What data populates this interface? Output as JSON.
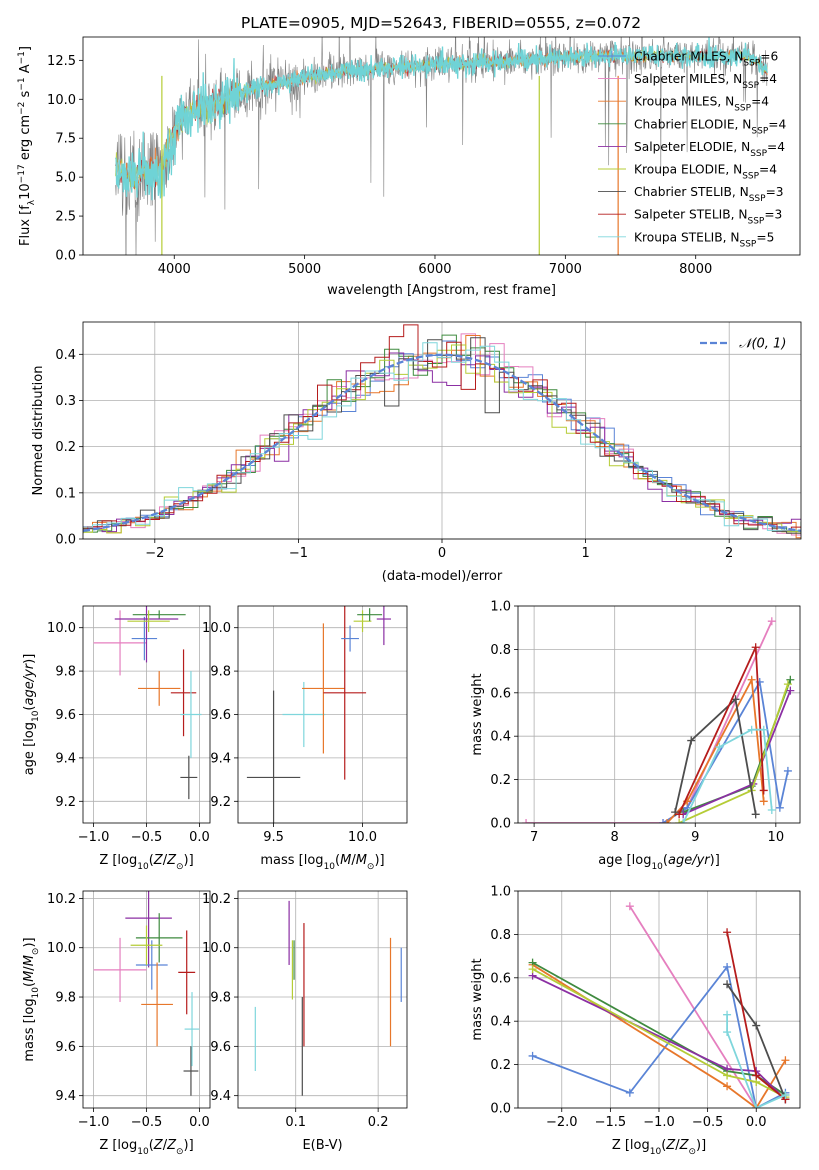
{
  "title": "PLATE=0905, MJD=52643, FIBERID=0555, z=0.072",
  "colors": {
    "c1": "#5a84d6",
    "c2": "#e7772b",
    "c3": "#3f8a3f",
    "c4": "#8b2fa3",
    "c5": "#b5cc36",
    "c6": "#4d4d4d",
    "c7": "#b51c1c",
    "c8": "#7fd6dc",
    "c9": "#e57fbf",
    "gray": "#808080",
    "cyan": "#6fd3d6"
  },
  "legend_models": [
    {
      "name": "Chabrier MILES",
      "nssp": "6",
      "color": "c1"
    },
    {
      "name": "Salpeter MILES",
      "nssp": "4",
      "color": "c9"
    },
    {
      "name": "Kroupa MILES",
      "nssp": "4",
      "color": "c2"
    },
    {
      "name": "Chabrier ELODIE",
      "nssp": "4",
      "color": "c3"
    },
    {
      "name": "Salpeter ELODIE",
      "nssp": "4",
      "color": "c4"
    },
    {
      "name": "Kroupa ELODIE",
      "nssp": "4",
      "color": "c5"
    },
    {
      "name": "Chabrier STELIB",
      "nssp": "3",
      "color": "c6"
    },
    {
      "name": "Salpeter STELIB",
      "nssp": "3",
      "color": "c7"
    },
    {
      "name": "Kroupa STELIB",
      "nssp": "5",
      "color": "c8"
    }
  ],
  "chart_data": [
    {
      "id": "spectrum",
      "type": "line",
      "xlabel": "wavelength [Angstrom, rest frame]",
      "ylabel": "Flux [f_λ 10^-17 erg cm^-2 s^-1 A^-1]",
      "xlim": [
        3300,
        8800
      ],
      "ylim": [
        0,
        14
      ],
      "xticks": [
        4000,
        5000,
        6000,
        7000,
        8000
      ],
      "yticks": [
        0.0,
        2.5,
        5.0,
        7.5,
        10.0,
        12.5
      ],
      "legend_position": "right",
      "continuum": [
        [
          3550,
          5.5
        ],
        [
          3700,
          5.0
        ],
        [
          3800,
          5.6
        ],
        [
          3900,
          5.3
        ],
        [
          3950,
          7.0
        ],
        [
          4050,
          8.6
        ],
        [
          4150,
          9.2
        ],
        [
          4300,
          9.6
        ],
        [
          4500,
          10.4
        ],
        [
          4700,
          10.9
        ],
        [
          5000,
          11.4
        ],
        [
          5300,
          11.8
        ],
        [
          5600,
          12.0
        ],
        [
          6000,
          12.2
        ],
        [
          6500,
          12.4
        ],
        [
          7000,
          12.7
        ],
        [
          7500,
          12.8
        ],
        [
          8000,
          12.8
        ],
        [
          8400,
          12.8
        ],
        [
          8550,
          11.8
        ]
      ]
    },
    {
      "id": "residuals",
      "type": "histogram",
      "xlabel": "(data-model)/error",
      "ylabel": "Normed distribution",
      "xlim": [
        -2.5,
        2.5
      ],
      "ylim": [
        0,
        0.47
      ],
      "xticks": [
        -2,
        -1,
        0,
        1,
        2
      ],
      "yticks": [
        0.0,
        0.1,
        0.2,
        0.3,
        0.4
      ],
      "legend": "N(0,1)",
      "legend_label": "𝒩(0, 1)",
      "legend_position": "top-right",
      "bin_width": 0.1
    },
    {
      "id": "age_vs_Z",
      "type": "scatter",
      "xlabel": "Z [log10(Z/Z_sun)]",
      "ylabel": "age [log10(age/yr)]",
      "xlim": [
        -1.1,
        0.1
      ],
      "ylim": [
        9.1,
        10.1
      ],
      "xticks": [
        -1.0,
        -0.5,
        0.0
      ],
      "yticks": [
        9.2,
        9.4,
        9.6,
        9.8,
        10.0
      ],
      "points": [
        {
          "color": "c9",
          "x": -0.75,
          "xerr": 0.25,
          "y": 9.93,
          "yerr": 0.15
        },
        {
          "color": "c1",
          "x": -0.52,
          "xerr": 0.12,
          "y": 9.95,
          "yerr": 0.1
        },
        {
          "color": "c2",
          "x": -0.38,
          "xerr": 0.2,
          "y": 9.72,
          "yerr": 0.08
        },
        {
          "color": "c3",
          "x": -0.38,
          "xerr": 0.25,
          "y": 10.06,
          "yerr": 0.02
        },
        {
          "color": "c4",
          "x": -0.5,
          "xerr": 0.3,
          "y": 10.04,
          "yerr": 0.2
        },
        {
          "color": "c5",
          "x": -0.48,
          "xerr": 0.2,
          "y": 10.03,
          "yerr": 0.05
        },
        {
          "color": "c7",
          "x": -0.15,
          "xerr": 0.12,
          "y": 9.7,
          "yerr": 0.2
        },
        {
          "color": "c6",
          "x": -0.1,
          "xerr": 0.08,
          "y": 9.31,
          "yerr": 0.1
        },
        {
          "color": "c8",
          "x": -0.08,
          "xerr": 0.1,
          "y": 9.6,
          "yerr": 0.2
        }
      ]
    },
    {
      "id": "age_vs_mass",
      "type": "scatter",
      "xlabel": "mass [log10(M/M_sun)]",
      "ylabel": "",
      "xlim": [
        9.3,
        10.25
      ],
      "ylim": [
        9.1,
        10.1
      ],
      "xticks": [
        9.5,
        10.0
      ],
      "yticks": [
        9.2,
        9.4,
        9.6,
        9.8,
        10.0
      ],
      "points": [
        {
          "color": "c6",
          "x": 9.5,
          "xerr": 0.15,
          "y": 9.31,
          "yerr": 0.4
        },
        {
          "color": "c8",
          "x": 9.67,
          "xerr": 0.12,
          "y": 9.6,
          "yerr": 0.15
        },
        {
          "color": "c2",
          "x": 9.78,
          "xerr": 0.12,
          "y": 9.72,
          "yerr": 0.3
        },
        {
          "color": "c7",
          "x": 9.9,
          "xerr": 0.12,
          "y": 9.7,
          "yerr": 0.4
        },
        {
          "color": "c1",
          "x": 9.93,
          "xerr": 0.05,
          "y": 9.95,
          "yerr": 0.06
        },
        {
          "color": "c5",
          "x": 10.0,
          "xerr": 0.05,
          "y": 10.03,
          "yerr": 0.05
        },
        {
          "color": "c3",
          "x": 10.04,
          "xerr": 0.07,
          "y": 10.06,
          "yerr": 0.03
        },
        {
          "color": "c4",
          "x": 10.12,
          "xerr": 0.04,
          "y": 10.04,
          "yerr": 0.12
        }
      ]
    },
    {
      "id": "weight_vs_age",
      "type": "line",
      "xlabel": "age [log10(age/yr)]",
      "ylabel": "mass weight",
      "xlim": [
        6.8,
        10.3
      ],
      "ylim": [
        0,
        1.0
      ],
      "xticks": [
        7,
        8,
        9,
        10
      ],
      "yticks": [
        0.0,
        0.2,
        0.4,
        0.6,
        0.8,
        1.0
      ],
      "series": [
        {
          "color": "c9",
          "points": [
            [
              6.9,
              0.0
            ],
            [
              8.6,
              0.0
            ],
            [
              8.9,
              0.07
            ],
            [
              9.95,
              0.93
            ]
          ]
        },
        {
          "color": "c1",
          "points": [
            [
              8.6,
              0.0
            ],
            [
              8.9,
              0.07
            ],
            [
              9.8,
              0.65
            ],
            [
              10.05,
              0.07
            ],
            [
              10.15,
              0.24
            ]
          ]
        },
        {
          "color": "c2",
          "points": [
            [
              8.65,
              0.0
            ],
            [
              8.9,
              0.1
            ],
            [
              9.7,
              0.66
            ],
            [
              9.85,
              0.1
            ]
          ]
        },
        {
          "color": "c3",
          "points": [
            [
              8.85,
              0.05
            ],
            [
              9.7,
              0.17
            ],
            [
              10.18,
              0.66
            ]
          ]
        },
        {
          "color": "c4",
          "points": [
            [
              8.85,
              0.04
            ],
            [
              9.72,
              0.18
            ],
            [
              10.18,
              0.61
            ]
          ]
        },
        {
          "color": "c5",
          "points": [
            [
              8.8,
              0.0
            ],
            [
              9.7,
              0.15
            ],
            [
              10.15,
              0.64
            ]
          ]
        },
        {
          "color": "c6",
          "points": [
            [
              8.75,
              0.05
            ],
            [
              8.95,
              0.38
            ],
            [
              9.5,
              0.57
            ],
            [
              9.75,
              0.04
            ]
          ]
        },
        {
          "color": "c7",
          "points": [
            [
              8.8,
              0.04
            ],
            [
              9.75,
              0.81
            ],
            [
              9.85,
              0.15
            ]
          ]
        },
        {
          "color": "c8",
          "points": [
            [
              8.85,
              0.0
            ],
            [
              9.3,
              0.35
            ],
            [
              9.7,
              0.43
            ],
            [
              9.85,
              0.43
            ],
            [
              9.95,
              0.06
            ]
          ]
        }
      ]
    },
    {
      "id": "mass_vs_Z",
      "type": "scatter",
      "xlabel": "Z [log10(Z/Z_sun)]",
      "ylabel": "mass [log10(M/M_sun)]",
      "xlim": [
        -1.1,
        0.1
      ],
      "ylim": [
        9.35,
        10.23
      ],
      "xticks": [
        -1.0,
        -0.5,
        0.0
      ],
      "yticks": [
        9.4,
        9.6,
        9.8,
        10.0,
        10.2
      ],
      "points": [
        {
          "color": "c9",
          "x": -0.75,
          "xerr": 0.25,
          "y": 9.91,
          "yerr": 0.13
        },
        {
          "color": "c4",
          "x": -0.48,
          "xerr": 0.22,
          "y": 10.12,
          "yerr": 0.2
        },
        {
          "color": "c3",
          "x": -0.38,
          "xerr": 0.22,
          "y": 10.04,
          "yerr": 0.1
        },
        {
          "color": "c1",
          "x": -0.45,
          "xerr": 0.15,
          "y": 9.93,
          "yerr": 0.1
        },
        {
          "color": "c5",
          "x": -0.5,
          "xerr": 0.15,
          "y": 10.01,
          "yerr": 0.08
        },
        {
          "color": "c2",
          "x": -0.4,
          "xerr": 0.15,
          "y": 9.77,
          "yerr": 0.17
        },
        {
          "color": "c7",
          "x": -0.12,
          "xerr": 0.08,
          "y": 9.9,
          "yerr": 0.17
        },
        {
          "color": "c6",
          "x": -0.08,
          "xerr": 0.07,
          "y": 9.5,
          "yerr": 0.1
        },
        {
          "color": "c8",
          "x": -0.07,
          "xerr": 0.07,
          "y": 9.67,
          "yerr": 0.15
        }
      ]
    },
    {
      "id": "mass_vs_EBV",
      "type": "scatter",
      "xlabel": "E(B-V)",
      "ylabel": "",
      "xlim": [
        0.03,
        0.235
      ],
      "ylim": [
        9.35,
        10.23
      ],
      "xticks": [
        0.1,
        0.2
      ],
      "yticks": [
        9.4,
        9.6,
        9.8,
        10.0,
        10.2
      ],
      "points": [
        {
          "color": "c8",
          "x": 0.051,
          "y": 9.63,
          "yerr": 0.13
        },
        {
          "color": "c4",
          "x": 0.092,
          "y": 10.06,
          "yerr": 0.13
        },
        {
          "color": "c5",
          "x": 0.096,
          "y": 9.91,
          "yerr": 0.12
        },
        {
          "color": "c3",
          "x": 0.098,
          "y": 9.95,
          "yerr": 0.08
        },
        {
          "color": "c6",
          "x": 0.108,
          "y": 9.6,
          "yerr": 0.2
        },
        {
          "color": "c7",
          "x": 0.11,
          "y": 9.85,
          "yerr": 0.25
        },
        {
          "color": "c2",
          "x": 0.215,
          "y": 9.82,
          "yerr": 0.22
        },
        {
          "color": "c1",
          "x": 0.228,
          "y": 9.89,
          "yerr": 0.11
        }
      ]
    },
    {
      "id": "weight_vs_Z",
      "type": "line",
      "xlabel": "Z [log10(Z/Z_sun)]",
      "ylabel": "mass weight",
      "xlim": [
        -2.45,
        0.45
      ],
      "ylim": [
        0,
        1.0
      ],
      "xticks": [
        -2.0,
        -1.5,
        -1.0,
        -0.5,
        0.0
      ],
      "yticks": [
        0.0,
        0.2,
        0.4,
        0.6,
        0.8,
        1.0
      ],
      "series": [
        {
          "color": "c9",
          "points": [
            [
              -1.3,
              0.93
            ],
            [
              0.0,
              0.0
            ]
          ]
        },
        {
          "color": "c1",
          "points": [
            [
              -2.3,
              0.24
            ],
            [
              -1.3,
              0.07
            ],
            [
              -0.3,
              0.65
            ],
            [
              0.0,
              0.0
            ],
            [
              0.3,
              0.07
            ]
          ]
        },
        {
          "color": "c2",
          "points": [
            [
              -2.3,
              0.66
            ],
            [
              -0.3,
              0.1
            ],
            [
              0.0,
              0.0
            ],
            [
              0.3,
              0.22
            ]
          ]
        },
        {
          "color": "c3",
          "points": [
            [
              -2.3,
              0.67
            ],
            [
              -0.3,
              0.17
            ],
            [
              0.0,
              0.15
            ],
            [
              0.3,
              0.06
            ]
          ]
        },
        {
          "color": "c4",
          "points": [
            [
              -2.3,
              0.61
            ],
            [
              -0.3,
              0.18
            ],
            [
              0.0,
              0.17
            ],
            [
              0.3,
              0.04
            ]
          ]
        },
        {
          "color": "c5",
          "points": [
            [
              -2.3,
              0.64
            ],
            [
              -0.3,
              0.15
            ],
            [
              0.0,
              0.12
            ],
            [
              0.3,
              0.05
            ]
          ]
        },
        {
          "color": "c6",
          "points": [
            [
              -0.3,
              0.57
            ],
            [
              0.0,
              0.38
            ],
            [
              0.3,
              0.04
            ]
          ]
        },
        {
          "color": "c7",
          "points": [
            [
              -0.3,
              0.81
            ],
            [
              0.0,
              0.15
            ],
            [
              0.3,
              0.04
            ]
          ]
        },
        {
          "color": "c8",
          "points": [
            [
              -0.3,
              0.43
            ],
            [
              -0.3,
              0.35
            ],
            [
              0.0,
              0.0
            ],
            [
              0.3,
              0.06
            ]
          ]
        }
      ]
    }
  ]
}
